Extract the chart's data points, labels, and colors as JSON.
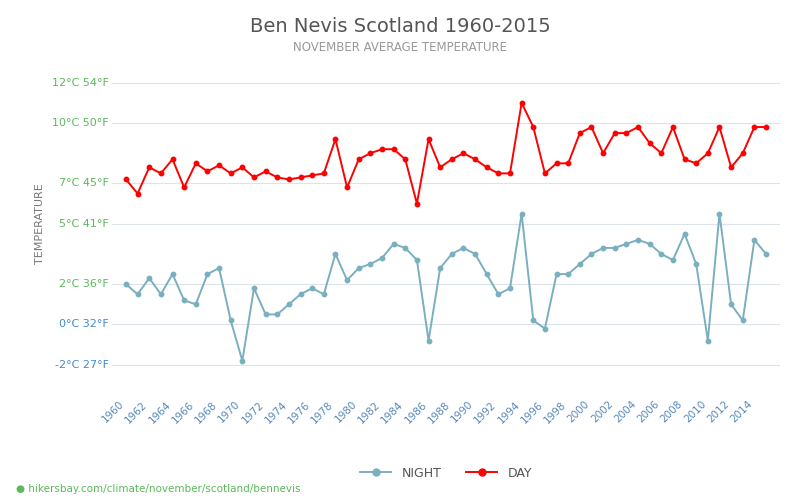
{
  "title": "Ben Nevis Scotland 1960-2015",
  "subtitle": "NOVEMBER AVERAGE TEMPERATURE",
  "ylabel": "TEMPERATURE",
  "xlabel_url": "hikersbay.com/climate/november/scotland/bennevis",
  "years": [
    1960,
    1961,
    1962,
    1963,
    1964,
    1965,
    1966,
    1967,
    1968,
    1969,
    1970,
    1971,
    1972,
    1973,
    1974,
    1975,
    1976,
    1977,
    1978,
    1979,
    1980,
    1981,
    1982,
    1983,
    1984,
    1985,
    1986,
    1987,
    1988,
    1989,
    1990,
    1991,
    1992,
    1993,
    1994,
    1995,
    1996,
    1997,
    1998,
    1999,
    2000,
    2001,
    2002,
    2003,
    2004,
    2005,
    2006,
    2007,
    2008,
    2009,
    2010,
    2011,
    2012,
    2013,
    2014,
    2015
  ],
  "day_temps": [
    7.2,
    6.5,
    7.8,
    7.5,
    8.2,
    6.8,
    8.0,
    7.6,
    7.9,
    7.5,
    7.8,
    7.3,
    7.6,
    7.3,
    7.2,
    7.3,
    7.4,
    7.5,
    9.2,
    6.8,
    8.2,
    8.5,
    8.7,
    8.7,
    8.2,
    6.0,
    9.2,
    7.8,
    8.2,
    8.5,
    8.2,
    7.8,
    7.5,
    7.5,
    11.0,
    9.8,
    7.5,
    8.0,
    8.0,
    9.5,
    9.8,
    8.5,
    9.5,
    9.5,
    9.8,
    9.0,
    8.5,
    9.8,
    8.2,
    8.0,
    8.5,
    9.8,
    7.8,
    8.5,
    9.8,
    9.8
  ],
  "night_temps": [
    2.0,
    1.5,
    2.3,
    1.5,
    2.5,
    1.2,
    1.0,
    2.5,
    2.8,
    0.2,
    -1.8,
    1.8,
    0.5,
    0.5,
    1.0,
    1.5,
    1.8,
    1.5,
    3.5,
    2.2,
    2.8,
    3.0,
    3.3,
    4.0,
    3.8,
    3.2,
    -0.8,
    2.8,
    3.5,
    3.8,
    3.5,
    2.5,
    1.5,
    1.8,
    5.5,
    0.2,
    -0.2,
    2.5,
    2.5,
    3.0,
    3.5,
    3.8,
    3.8,
    4.0,
    4.2,
    4.0,
    3.5,
    3.2,
    4.5,
    3.0,
    -0.8,
    5.5,
    1.0,
    0.2,
    4.2,
    3.5
  ],
  "yticks_c": [
    -2,
    0,
    2,
    5,
    7,
    10,
    12
  ],
  "yticks_f": [
    27,
    32,
    36,
    41,
    45,
    50,
    54
  ],
  "ylim": [
    -3.5,
    13.5
  ],
  "day_color": "#ff0000",
  "night_color": "#7aafc0",
  "grid_color": "#dce4ea",
  "title_color": "#555555",
  "subtitle_color": "#999999",
  "ytick_color_green": "#5cb85c",
  "ytick_color_blue": "#4488cc",
  "url_color": "#5cb85c",
  "background_color": "#ffffff",
  "legend_night_color": "#7aafc0",
  "legend_day_color": "#ff0000",
  "legend_text_color": "#555555"
}
